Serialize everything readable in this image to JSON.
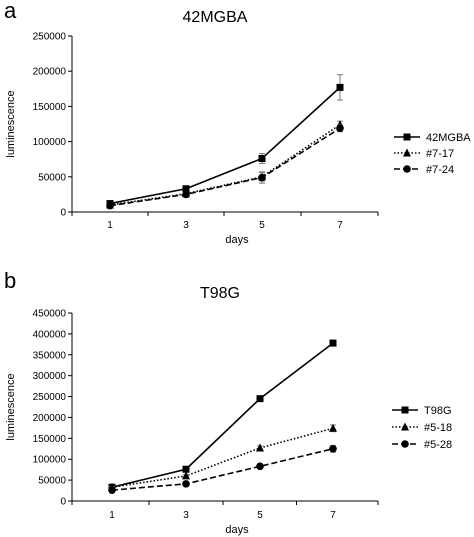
{
  "chart_data": [
    {
      "panel": "a",
      "type": "line",
      "title": "42MGBA",
      "xlabel": "days",
      "ylabel": "luminescence",
      "x": [
        1,
        3,
        5,
        7
      ],
      "xticks": [
        "1",
        "3",
        "5",
        "7"
      ],
      "ylim": [
        0,
        250000
      ],
      "yticks": [
        "0",
        "50000",
        "100000",
        "150000",
        "200000",
        "250000"
      ],
      "grid": false,
      "legend_position": "right",
      "series": [
        {
          "name": "42MGBA",
          "marker": "square",
          "dash": "solid",
          "values": [
            12000,
            33000,
            76000,
            177000
          ],
          "errors": [
            1500,
            2500,
            7000,
            18000
          ]
        },
        {
          "name": "#7-17",
          "marker": "triangle",
          "dash": "dotted",
          "values": [
            10000,
            26000,
            50000,
            124000
          ],
          "errors": [
            1000,
            2000,
            6000,
            5000
          ]
        },
        {
          "name": "#7-24",
          "marker": "circle",
          "dash": "dashed",
          "values": [
            9000,
            25000,
            49000,
            119000
          ],
          "errors": [
            1000,
            2000,
            8000,
            5000
          ]
        }
      ]
    },
    {
      "panel": "b",
      "type": "line",
      "title": "T98G",
      "xlabel": "days",
      "ylabel": "luminescence",
      "x": [
        1,
        3,
        5,
        7
      ],
      "xticks": [
        "1",
        "3",
        "5",
        "7"
      ],
      "ylim": [
        0,
        450000
      ],
      "yticks": [
        "0",
        "50000",
        "100000",
        "150000",
        "200000",
        "250000",
        "300000",
        "350000",
        "400000",
        "450000"
      ],
      "grid": false,
      "legend_position": "right",
      "series": [
        {
          "name": "T98G",
          "marker": "square",
          "dash": "solid",
          "values": [
            33000,
            76000,
            245000,
            378000
          ],
          "errors": [
            2000,
            3000,
            5000,
            3000
          ]
        },
        {
          "name": "#5-18",
          "marker": "triangle",
          "dash": "dotted",
          "values": [
            33000,
            60000,
            127000,
            174000
          ],
          "errors": [
            2000,
            3000,
            5000,
            8000
          ]
        },
        {
          "name": "#5-28",
          "marker": "circle",
          "dash": "dashed",
          "values": [
            26000,
            41000,
            83000,
            125000
          ],
          "errors": [
            2000,
            3000,
            4000,
            8000
          ]
        }
      ]
    }
  ]
}
